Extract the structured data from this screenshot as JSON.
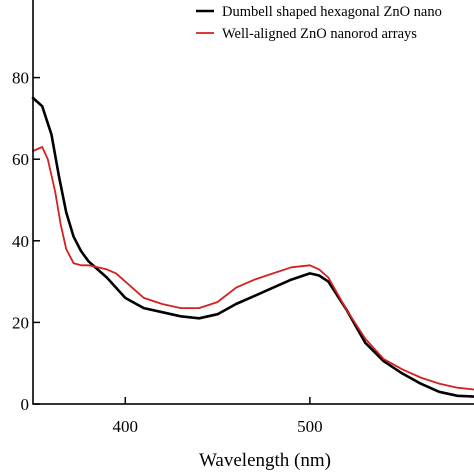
{
  "chart_data": {
    "type": "line",
    "title": "",
    "xlabel": "Wavelength (nm)",
    "ylabel": "",
    "xlim": [
      350,
      590
    ],
    "ylim": [
      0,
      100
    ],
    "x_ticks": [
      400,
      500
    ],
    "x_tick_labels": [
      "400",
      "500"
    ],
    "y_ticks": [
      0,
      20,
      40,
      60,
      80
    ],
    "y_tick_labels": [
      "0",
      "20",
      "40",
      "60",
      "80"
    ],
    "grid": false,
    "legend_position": "top-right",
    "series": [
      {
        "name": "Dumbell shaped hexagonal ZnO nano",
        "color": "#000000",
        "x": [
          350,
          355,
          360,
          364,
          368,
          372,
          376,
          380,
          385,
          390,
          395,
          400,
          410,
          420,
          430,
          440,
          450,
          460,
          470,
          480,
          490,
          500,
          505,
          510,
          520,
          530,
          540,
          550,
          560,
          570,
          580,
          590
        ],
        "y": [
          75,
          73,
          66,
          56,
          47,
          41,
          37.5,
          35,
          33,
          31,
          28.5,
          26,
          23.5,
          22.5,
          21.5,
          21,
          22,
          24.5,
          26.5,
          28.5,
          30.5,
          32,
          31.5,
          30,
          23,
          15,
          10.5,
          7.5,
          5,
          3,
          2,
          1.8
        ]
      },
      {
        "name": "Well-aligned ZnO nanorod arrays",
        "color": "#d42020",
        "x": [
          350,
          355,
          358,
          362,
          365,
          368,
          372,
          376,
          380,
          385,
          390,
          395,
          400,
          410,
          420,
          430,
          440,
          450,
          460,
          470,
          480,
          490,
          500,
          505,
          510,
          520,
          530,
          540,
          550,
          560,
          570,
          580,
          590
        ],
        "y": [
          62,
          63,
          60,
          52,
          44,
          38,
          34.5,
          34,
          34,
          33.5,
          33,
          32,
          30,
          26,
          24.5,
          23.5,
          23.5,
          25,
          28.5,
          30.5,
          32,
          33.5,
          34,
          33,
          31,
          23,
          16,
          11,
          8.5,
          6.5,
          5,
          4,
          3.5
        ]
      }
    ]
  }
}
